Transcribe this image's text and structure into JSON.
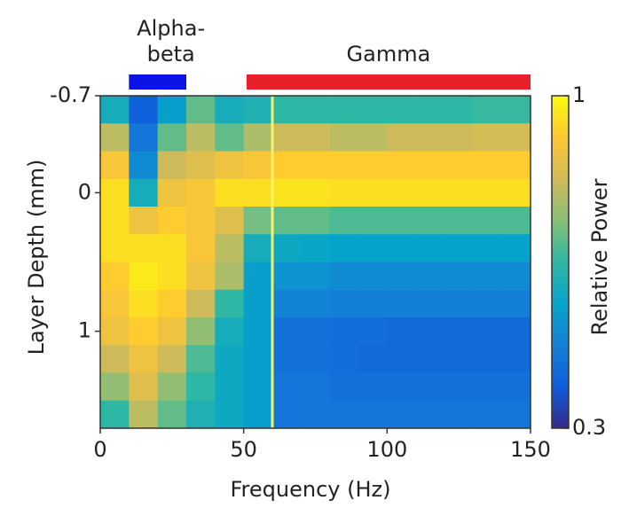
{
  "chart_data": {
    "type": "heatmap",
    "xlabel": "Frequency  (Hz)",
    "ylabel": "Layer Depth (mm)",
    "colorbar_label": "Relative Power",
    "xlim": [
      0,
      150
    ],
    "xticks": [
      0,
      50,
      100,
      150
    ],
    "ylim": [
      -0.7,
      1.7
    ],
    "yticks": [
      -0.7,
      0,
      1
    ],
    "clim": [
      0.3,
      1
    ],
    "cticks": [
      0.3,
      1
    ],
    "colormap": "parula",
    "x_edges": [
      0,
      10,
      20,
      30,
      40,
      50,
      60,
      70,
      80,
      90,
      100,
      110,
      120,
      130,
      140,
      150
    ],
    "y_edges": [
      -0.7,
      -0.5,
      -0.3,
      -0.1,
      0.1,
      0.3,
      0.5,
      0.7,
      0.9,
      1.1,
      1.3,
      1.5,
      1.7
    ],
    "z": [
      [
        0.6,
        0.4,
        0.55,
        0.7,
        0.6,
        0.62,
        0.65,
        0.65,
        0.65,
        0.65,
        0.65,
        0.65,
        0.65,
        0.66,
        0.66
      ],
      [
        0.8,
        0.45,
        0.7,
        0.8,
        0.7,
        0.78,
        0.82,
        0.82,
        0.8,
        0.8,
        0.82,
        0.82,
        0.82,
        0.83,
        0.83
      ],
      [
        0.9,
        0.5,
        0.82,
        0.85,
        0.88,
        0.9,
        0.92,
        0.92,
        0.92,
        0.92,
        0.92,
        0.92,
        0.92,
        0.92,
        0.92
      ],
      [
        0.95,
        0.6,
        0.88,
        0.9,
        0.95,
        0.95,
        0.96,
        0.96,
        0.95,
        0.95,
        0.95,
        0.95,
        0.95,
        0.95,
        0.95
      ],
      [
        0.95,
        0.88,
        0.92,
        0.9,
        0.85,
        0.72,
        0.7,
        0.7,
        0.68,
        0.68,
        0.68,
        0.68,
        0.68,
        0.68,
        0.68
      ],
      [
        0.95,
        0.95,
        0.95,
        0.9,
        0.8,
        0.6,
        0.58,
        0.57,
        0.56,
        0.56,
        0.56,
        0.56,
        0.56,
        0.56,
        0.56
      ],
      [
        0.92,
        0.97,
        0.95,
        0.88,
        0.78,
        0.55,
        0.52,
        0.52,
        0.5,
        0.5,
        0.5,
        0.5,
        0.5,
        0.5,
        0.5
      ],
      [
        0.9,
        0.95,
        0.92,
        0.82,
        0.65,
        0.55,
        0.48,
        0.48,
        0.47,
        0.47,
        0.47,
        0.47,
        0.47,
        0.47,
        0.47
      ],
      [
        0.88,
        0.92,
        0.88,
        0.75,
        0.6,
        0.55,
        0.44,
        0.44,
        0.43,
        0.43,
        0.42,
        0.42,
        0.42,
        0.42,
        0.42
      ],
      [
        0.82,
        0.88,
        0.82,
        0.68,
        0.58,
        0.55,
        0.44,
        0.44,
        0.43,
        0.42,
        0.42,
        0.42,
        0.42,
        0.42,
        0.42
      ],
      [
        0.75,
        0.85,
        0.75,
        0.65,
        0.58,
        0.55,
        0.45,
        0.45,
        0.44,
        0.44,
        0.44,
        0.44,
        0.44,
        0.44,
        0.44
      ],
      [
        0.65,
        0.8,
        0.7,
        0.62,
        0.58,
        0.55,
        0.45,
        0.45,
        0.45,
        0.45,
        0.45,
        0.45,
        0.45,
        0.45,
        0.45
      ]
    ],
    "vertical_line": {
      "x": 60,
      "color": "#f4f36a"
    },
    "bands": [
      {
        "label_lines": [
          "Alpha-",
          "beta"
        ],
        "range": [
          10,
          30
        ],
        "color": "#0a14e6"
      },
      {
        "label_lines": [
          "Gamma"
        ],
        "range": [
          51,
          150
        ],
        "color": "#e8202a"
      }
    ]
  }
}
